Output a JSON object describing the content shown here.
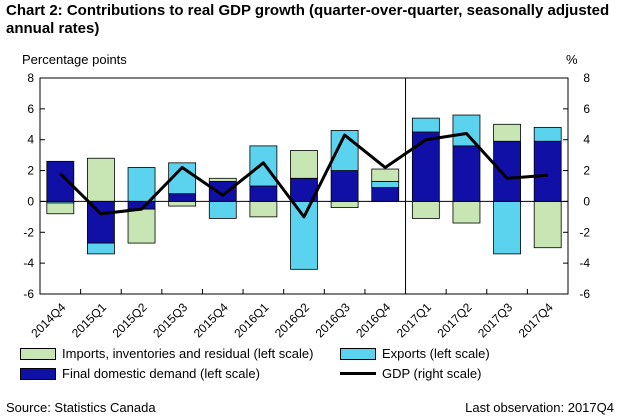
{
  "title": "Chart 2: Contributions to real GDP growth (quarter-over-quarter, seasonally adjusted annual rates)",
  "left_unit": "Percentage points",
  "right_unit": "%",
  "source": "Source: Statistics Canada",
  "last_observation": "Last observation: 2017Q4",
  "colors": {
    "imports": "#c8e6b4",
    "exports": "#5bd3ef",
    "final_demand": "#1010a6",
    "gdp": "#000000"
  },
  "legend": {
    "imports": "Imports, inventories and residual (left scale)",
    "exports": "Exports (left scale)",
    "final_demand": "Final domestic demand (left scale)",
    "gdp": "GDP (right scale)"
  },
  "chart_data": {
    "type": "bar",
    "stacked": true,
    "categories": [
      "2014Q4",
      "2015Q1",
      "2015Q2",
      "2015Q3",
      "2015Q4",
      "2016Q1",
      "2016Q2",
      "2016Q3",
      "2016Q4",
      "2017Q1",
      "2017Q2",
      "2017Q3",
      "2017Q4"
    ],
    "series": [
      {
        "name": "Final domestic demand (left scale)",
        "key": "final_demand",
        "values": [
          2.6,
          -2.7,
          -0.5,
          0.5,
          1.3,
          1.0,
          1.5,
          2.0,
          0.9,
          4.5,
          3.6,
          3.9,
          3.9
        ]
      },
      {
        "name": "Exports (left scale)",
        "key": "exports",
        "values": [
          -0.1,
          -0.7,
          2.2,
          2.0,
          -1.1,
          2.6,
          -4.4,
          2.6,
          0.4,
          0.9,
          2.0,
          -3.4,
          0.9
        ]
      },
      {
        "name": "Imports, inventories and residual (left scale)",
        "key": "imports",
        "values": [
          -0.7,
          2.8,
          -2.2,
          -0.3,
          0.2,
          -1.0,
          1.8,
          -0.4,
          0.8,
          -1.1,
          -1.4,
          1.1,
          -3.0
        ]
      },
      {
        "name": "GDP (right scale)",
        "key": "gdp",
        "type": "line",
        "values": [
          1.8,
          -0.8,
          -0.5,
          2.2,
          0.4,
          2.5,
          -1.0,
          4.3,
          2.2,
          4.0,
          4.4,
          1.5,
          1.7
        ]
      }
    ],
    "ylim": [
      -6,
      8
    ],
    "y_ticks": [
      -6,
      -4,
      -2,
      0,
      2,
      4,
      6,
      8
    ],
    "y2lim": [
      -6,
      8
    ],
    "ylabel": "Percentage points",
    "y2label": "%",
    "divider_after": "2016Q4"
  }
}
